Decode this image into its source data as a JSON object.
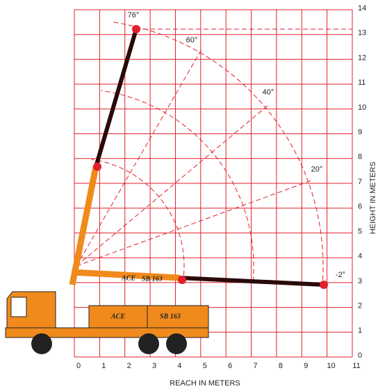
{
  "chart_data": {
    "type": "grid",
    "xlabel": "REACH IN METERS",
    "ylabel": "HEIGHT IN METERS",
    "xlim": [
      0,
      11
    ],
    "ylim": [
      0,
      14
    ],
    "xticks": [
      0,
      1,
      2,
      3,
      4,
      5,
      6,
      7,
      8,
      9,
      10,
      11
    ],
    "yticks": [
      0,
      1,
      2,
      3,
      4,
      5,
      6,
      7,
      8,
      9,
      10,
      11,
      12,
      13,
      14
    ],
    "grid": true,
    "grid_color": "#e0202a",
    "annotations": [
      "76°",
      "60°",
      "40°",
      "20°",
      "-2°"
    ]
  },
  "truck": {
    "body_labels": [
      "ACE",
      "SB 163"
    ],
    "boom_labels": [
      "ACE",
      "SB 163"
    ]
  }
}
